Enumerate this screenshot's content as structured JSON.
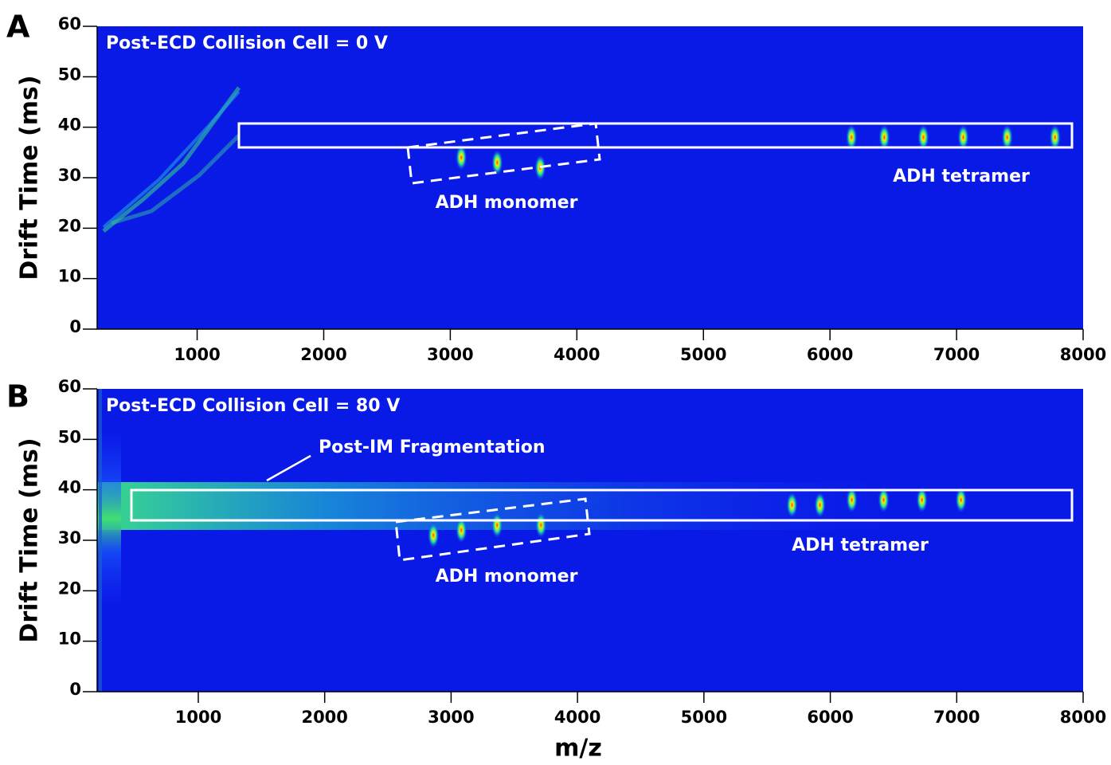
{
  "chart_data": [
    {
      "type": "heatmap",
      "panel": "A",
      "title": "Post-ECD Collision Cell = 0 V",
      "ylabel": "Drift Time (ms)",
      "xlim": [
        210,
        8000
      ],
      "ylim": [
        0,
        60
      ],
      "xticks": [
        1000,
        2000,
        3000,
        4000,
        5000,
        6000,
        7000,
        8000
      ],
      "yticks": [
        0,
        10,
        20,
        30,
        40,
        50,
        60
      ],
      "annotations": [
        "ADH tetramer",
        "ADH monomer"
      ],
      "peaks": {
        "x": [
          3087,
          3371,
          3711,
          6170,
          6429,
          6738,
          7053,
          7400,
          7778
        ],
        "y": [
          34,
          33,
          32,
          38,
          38,
          38,
          38,
          38,
          38
        ]
      }
    },
    {
      "type": "heatmap",
      "panel": "B",
      "title": "Post-ECD Collision Cell = 80 V",
      "ylabel": "Drift Time (ms)",
      "xlabel": "m/z",
      "xlim": [
        200,
        8000
      ],
      "ylim": [
        0,
        60
      ],
      "xticks": [
        1000,
        2000,
        3000,
        4000,
        5000,
        6000,
        7000,
        8000
      ],
      "yticks": [
        0,
        10,
        20,
        30,
        40,
        50,
        60
      ],
      "annotations": [
        "Post-IM Fragmentation",
        "ADH tetramer",
        "ADH monomer"
      ],
      "peaks": {
        "x": [
          2860,
          3081,
          3364,
          3711,
          5697,
          5918,
          6170,
          6422,
          6725,
          7034
        ],
        "y": [
          31,
          32,
          33,
          33,
          37,
          37,
          38,
          38,
          38,
          38
        ]
      }
    }
  ]
}
